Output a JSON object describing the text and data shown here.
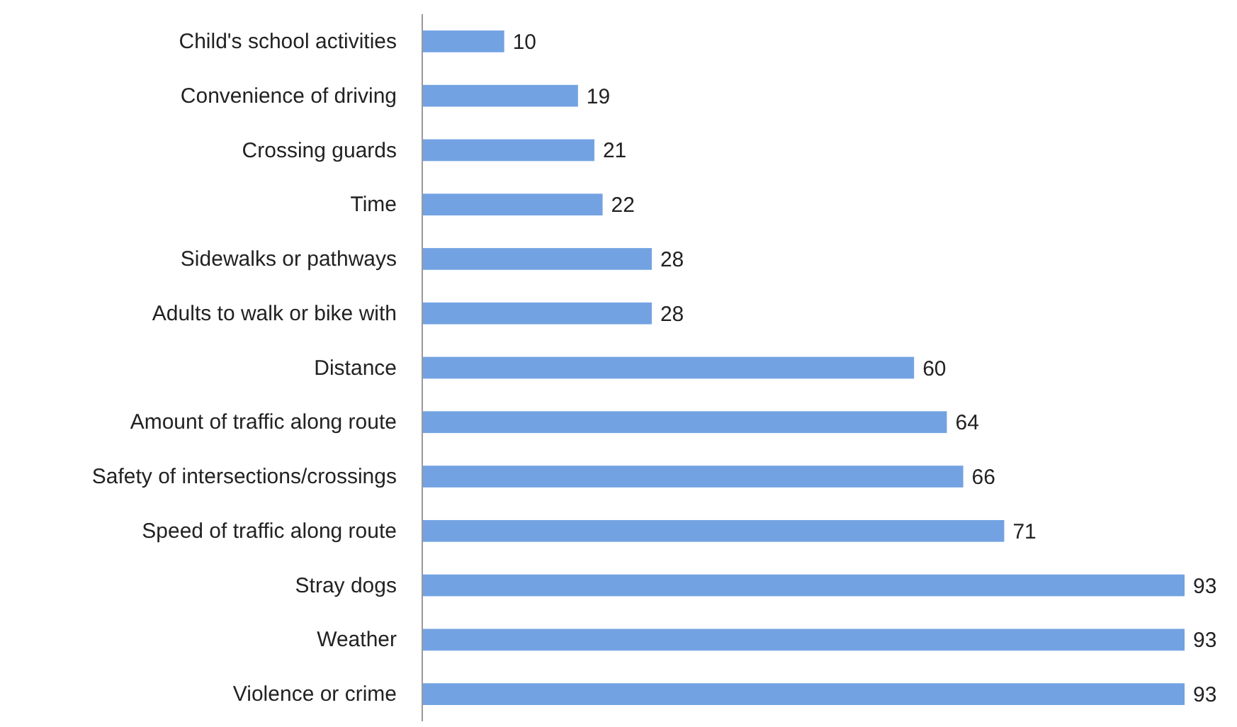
{
  "chart_data": {
    "type": "bar",
    "orientation": "horizontal",
    "categories": [
      "Child's school activities",
      "Convenience of driving",
      "Crossing guards",
      "Time",
      "Sidewalks or pathways",
      "Adults to walk or bike with",
      "Distance",
      "Amount of traffic along route",
      "Safety of intersections/crossings",
      "Speed of traffic along route",
      "Stray dogs",
      "Weather",
      "Violence or crime"
    ],
    "values": [
      10,
      19,
      21,
      22,
      28,
      28,
      60,
      64,
      66,
      71,
      93,
      93,
      93
    ],
    "color": "#73a2e2",
    "xlim": [
      0,
      93
    ],
    "tick_labels": "y",
    "data_labels": true
  }
}
